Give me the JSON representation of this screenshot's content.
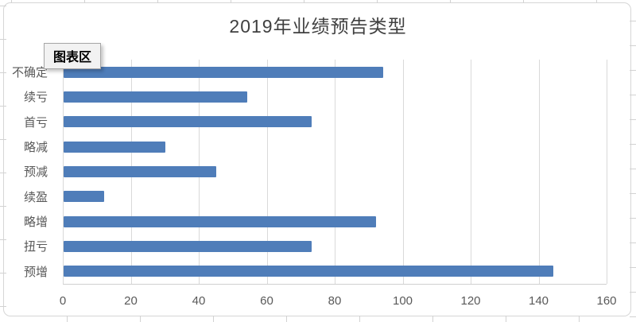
{
  "tooltip": {
    "label": "图表区"
  },
  "chart_data": {
    "type": "bar",
    "orientation": "horizontal",
    "title": "2019年业绩预告类型",
    "categories": [
      "不确定",
      "续亏",
      "首亏",
      "略减",
      "预减",
      "续盈",
      "略增",
      "扭亏",
      "预增"
    ],
    "values": [
      94,
      54,
      73,
      30,
      45,
      12,
      92,
      73,
      144
    ],
    "xlabel": "",
    "ylabel": "",
    "xlim": [
      0,
      160
    ],
    "x_ticks": [
      0,
      20,
      40,
      60,
      80,
      100,
      120,
      140,
      160
    ],
    "grid": true,
    "legend": false,
    "bar_color": "#4F7DB9",
    "gridline_color": "#D9D9D9",
    "axis_label_color": "#595959",
    "title_color": "#404040"
  }
}
